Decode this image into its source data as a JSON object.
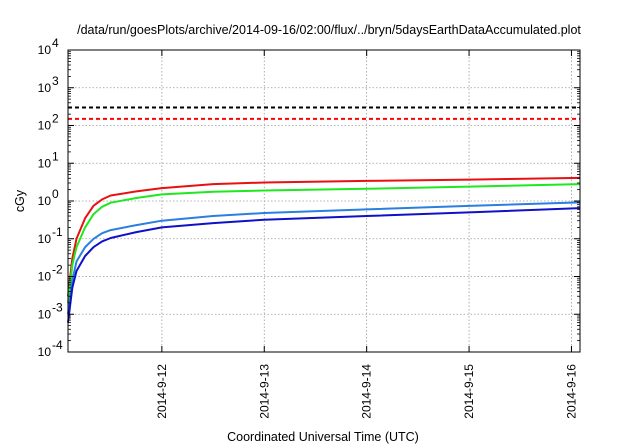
{
  "chart_data": {
    "type": "line",
    "title": "/data/run/goesPlots/archive/2014-09-16/02:00/flux/../bryn/5daysEarthDataAccumulated.plot",
    "xlabel": "Coordinated Universal Time (UTC)",
    "ylabel": "cGy",
    "y_scale": "log",
    "ylim": [
      0.0001,
      10000
    ],
    "xlim": [
      "2014-09-11T02:00",
      "2014-09-16T02:00"
    ],
    "grid": true,
    "y_ticks": [
      {
        "base": "10",
        "exp": "-4"
      },
      {
        "base": "10",
        "exp": "-3"
      },
      {
        "base": "10",
        "exp": "-2"
      },
      {
        "base": "10",
        "exp": "-1"
      },
      {
        "base": "10",
        "exp": "0"
      },
      {
        "base": "10",
        "exp": "1"
      },
      {
        "base": "10",
        "exp": "2"
      },
      {
        "base": "10",
        "exp": "3"
      },
      {
        "base": "10",
        "exp": "4"
      }
    ],
    "x_ticks": [
      {
        "label": "2014-9-12",
        "date": "2014-09-12T00:00"
      },
      {
        "label": "2014-9-13",
        "date": "2014-09-13T00:00"
      },
      {
        "label": "2014-9-14",
        "date": "2014-09-14T00:00"
      },
      {
        "label": "2014-9-15",
        "date": "2014-09-15T00:00"
      },
      {
        "label": "2014-9-16",
        "date": "2014-09-16T00:00"
      }
    ],
    "thresholds": [
      {
        "value": 300,
        "color": "#000000",
        "style": "dashed"
      },
      {
        "value": 150,
        "color": "#ff0000",
        "style": "dashed"
      }
    ],
    "series": [
      {
        "color": "#e81010",
        "x": [
          "2014-09-11T02:00",
          "2014-09-11T03:00",
          "2014-09-11T04:00",
          "2014-09-11T06:00",
          "2014-09-11T08:00",
          "2014-09-11T10:00",
          "2014-09-11T12:00",
          "2014-09-11T18:00",
          "2014-09-12T00:00",
          "2014-09-12T12:00",
          "2014-09-13T00:00",
          "2014-09-14T00:00",
          "2014-09-15T00:00",
          "2014-09-16T02:00"
        ],
        "y": [
          0.003,
          0.03,
          0.1,
          0.35,
          0.75,
          1.1,
          1.4,
          1.8,
          2.2,
          2.8,
          3.1,
          3.4,
          3.7,
          4.1
        ]
      },
      {
        "color": "#1ee81e",
        "x": [
          "2014-09-11T02:00",
          "2014-09-11T03:00",
          "2014-09-11T04:00",
          "2014-09-11T06:00",
          "2014-09-11T08:00",
          "2014-09-11T10:00",
          "2014-09-11T12:00",
          "2014-09-11T18:00",
          "2014-09-12T00:00",
          "2014-09-12T12:00",
          "2014-09-13T00:00",
          "2014-09-14T00:00",
          "2014-09-15T00:00",
          "2014-09-16T02:00"
        ],
        "y": [
          0.002,
          0.02,
          0.06,
          0.2,
          0.45,
          0.7,
          0.9,
          1.2,
          1.5,
          1.75,
          1.9,
          2.1,
          2.4,
          2.8
        ]
      },
      {
        "color": "#2a7fe0",
        "x": [
          "2014-09-11T02:00",
          "2014-09-11T03:00",
          "2014-09-11T04:00",
          "2014-09-11T06:00",
          "2014-09-11T08:00",
          "2014-09-11T10:00",
          "2014-09-11T12:00",
          "2014-09-11T18:00",
          "2014-09-12T00:00",
          "2014-09-12T12:00",
          "2014-09-13T00:00",
          "2014-09-14T00:00",
          "2014-09-15T00:00",
          "2014-09-16T02:00"
        ],
        "y": [
          0.001,
          0.008,
          0.025,
          0.06,
          0.1,
          0.14,
          0.17,
          0.23,
          0.3,
          0.4,
          0.48,
          0.6,
          0.74,
          0.92
        ]
      },
      {
        "color": "#1010c8",
        "x": [
          "2014-09-11T02:00",
          "2014-09-11T03:00",
          "2014-09-11T04:00",
          "2014-09-11T06:00",
          "2014-09-11T08:00",
          "2014-09-11T10:00",
          "2014-09-11T12:00",
          "2014-09-11T18:00",
          "2014-09-12T00:00",
          "2014-09-12T12:00",
          "2014-09-13T00:00",
          "2014-09-14T00:00",
          "2014-09-15T00:00",
          "2014-09-16T02:00"
        ],
        "y": [
          0.0006,
          0.005,
          0.014,
          0.035,
          0.06,
          0.085,
          0.105,
          0.15,
          0.2,
          0.26,
          0.32,
          0.4,
          0.5,
          0.65
        ]
      }
    ]
  }
}
